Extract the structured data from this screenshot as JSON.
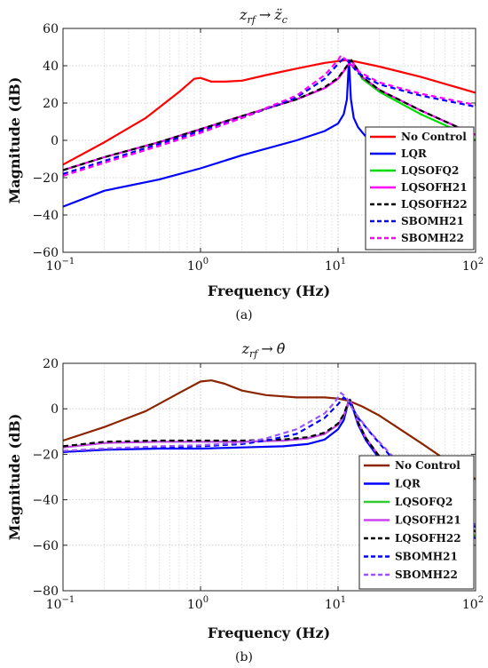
{
  "chart_data": [
    {
      "type": "line",
      "panel": "a",
      "caption": "(a)",
      "title": "z_{rf} → z̈_c",
      "title_parts": {
        "main": "z",
        "sub": "rf",
        "arrow": "→",
        "target": "z̈",
        "target_sub": "c"
      },
      "xlabel": "Frequency (Hz)",
      "ylabel": "Magnitude (dB)",
      "xscale": "log",
      "xlim": [
        0.1,
        100
      ],
      "ylim": [
        -60,
        60
      ],
      "x_ticks": [
        0.1,
        1,
        10,
        100
      ],
      "x_tick_labels": [
        "10",
        "10",
        "10",
        "10"
      ],
      "x_tick_exponents": [
        "−1",
        "0",
        "1",
        "2"
      ],
      "y_ticks": [
        -60,
        -40,
        -20,
        0,
        20,
        40,
        60
      ],
      "y_tick_labels": [
        "−60",
        "−40",
        "−20",
        "0",
        "20",
        "40",
        "60"
      ],
      "grid": true,
      "legend_position": "lower-right",
      "series": [
        {
          "name": "No Control",
          "color": "#ff0000",
          "dash": "solid",
          "x": [
            0.1,
            0.2,
            0.4,
            0.7,
            0.9,
            1.0,
            1.2,
            1.5,
            2.0,
            3.0,
            5.0,
            8.0,
            10.0,
            11.5,
            13.0,
            20.0,
            40.0,
            100.0
          ],
          "y": [
            -13,
            -1,
            12,
            26,
            33,
            33.5,
            31.5,
            31.5,
            32,
            35,
            38.5,
            41.5,
            42.5,
            43,
            42.5,
            39.5,
            34,
            25.5
          ]
        },
        {
          "name": "LQR",
          "color": "#0000ff",
          "dash": "solid",
          "x": [
            0.1,
            0.2,
            0.5,
            1.0,
            2.0,
            5.0,
            8.0,
            10.0,
            11.0,
            11.6,
            12.0,
            12.4,
            13.0,
            14.0,
            15.5,
            17.0,
            18.5,
            20.0
          ],
          "y": [
            -35.5,
            -27,
            -21,
            -15,
            -8,
            0,
            5,
            9,
            14,
            22,
            43,
            22,
            12,
            7,
            3,
            0,
            -2,
            -3
          ]
        },
        {
          "name": "LQSOFQ2",
          "color": "#00dd00",
          "dash": "solid",
          "x": [
            0.1,
            0.2,
            0.5,
            1.0,
            2.0,
            5.0,
            8.0,
            10.0,
            11.5,
            12.5,
            15.0,
            20.0,
            40.0,
            80.0,
            100.0
          ],
          "y": [
            -16,
            -9,
            -1,
            6,
            13,
            22,
            28,
            33,
            39,
            43,
            33,
            26,
            14,
            4,
            0
          ]
        },
        {
          "name": "LQSOFH21",
          "color": "#ff00ff",
          "dash": "solid",
          "x": [
            0.1,
            0.2,
            0.5,
            1.0,
            2.0,
            5.0,
            8.0,
            10.0,
            11.5,
            12.5,
            15.0,
            20.0,
            40.0,
            80.0,
            100.0
          ],
          "y": [
            -16,
            -9,
            -1,
            6,
            13,
            22,
            28,
            33,
            39,
            43,
            34,
            27,
            16,
            6,
            3
          ]
        },
        {
          "name": "LQSOFH22",
          "color": "#000000",
          "dash": "6,4",
          "x": [
            0.1,
            0.2,
            0.5,
            1.0,
            2.0,
            5.0,
            8.0,
            10.0,
            11.5,
            12.5,
            15.0,
            20.0,
            40.0,
            80.0,
            100.0
          ],
          "y": [
            -16,
            -9,
            -1,
            6,
            13,
            22,
            28.5,
            33.5,
            39.5,
            43,
            34,
            27,
            16,
            6,
            3
          ]
        },
        {
          "name": "SBOMH21",
          "color": "#0000ff",
          "dash": "6,4",
          "x": [
            0.1,
            0.2,
            0.5,
            1.0,
            2.0,
            5.0,
            8.0,
            10.0,
            11.0,
            12.0,
            14.0,
            20.0,
            40.0,
            100.0
          ],
          "y": [
            -18,
            -11,
            -2,
            5,
            12,
            23,
            33,
            41,
            44,
            42,
            36,
            30,
            24,
            18
          ]
        },
        {
          "name": "SBOMH22",
          "color": "#ff00ff",
          "dash": "6,4",
          "x": [
            0.1,
            0.2,
            0.5,
            1.0,
            2.0,
            5.0,
            8.0,
            10.0,
            10.5,
            11.5,
            14.0,
            20.0,
            40.0,
            100.0
          ],
          "y": [
            -19,
            -12,
            -3,
            4,
            12,
            24,
            35,
            43,
            45.5,
            43,
            37,
            31,
            25,
            19
          ]
        }
      ]
    },
    {
      "type": "line",
      "panel": "b",
      "caption": "(b)",
      "title": "z_{rf} → θ̇",
      "title_parts": {
        "main": "z",
        "sub": "rf",
        "arrow": "→",
        "target": "θ̇",
        "target_sub": ""
      },
      "xlabel": "Frequency (Hz)",
      "ylabel": "Magnitude (dB)",
      "xscale": "log",
      "xlim": [
        0.1,
        100
      ],
      "ylim": [
        -80,
        20
      ],
      "x_ticks": [
        0.1,
        1,
        10,
        100
      ],
      "x_tick_labels": [
        "10",
        "10",
        "10",
        "10"
      ],
      "x_tick_exponents": [
        "−1",
        "0",
        "1",
        "2"
      ],
      "y_ticks": [
        -80,
        -60,
        -40,
        -20,
        0,
        20
      ],
      "y_tick_labels": [
        "−80",
        "−60",
        "−40",
        "−20",
        "0",
        "20"
      ],
      "grid": true,
      "legend_position": "lower-right",
      "series": [
        {
          "name": "No Control",
          "color": "#8b2500",
          "dash": "solid",
          "x": [
            0.1,
            0.2,
            0.4,
            0.7,
            1.0,
            1.2,
            1.5,
            2.0,
            3.0,
            5.0,
            8.0,
            10.0,
            12.0,
            15.0,
            20.0,
            40.0,
            70.0,
            100.0
          ],
          "y": [
            -14,
            -8,
            -1,
            7,
            12,
            12.5,
            11,
            8,
            6,
            5,
            5,
            4.5,
            3.5,
            1,
            -3,
            -15,
            -25,
            -31
          ]
        },
        {
          "name": "LQR",
          "color": "#0000ff",
          "dash": "solid",
          "x": [
            0.1,
            0.2,
            0.5,
            1.0,
            2.0,
            4.0,
            6.0,
            8.0,
            10.0,
            11.0,
            11.8,
            12.2,
            13.0,
            14.0,
            16.0,
            20.0,
            40.0,
            70.0,
            100.0
          ],
          "y": [
            -19,
            -18,
            -17.5,
            -17.5,
            -17,
            -16.5,
            -15.5,
            -13.5,
            -9,
            -5,
            2,
            4,
            -1,
            -7,
            -14,
            -22,
            -40,
            -51,
            -57
          ]
        },
        {
          "name": "LQSOFQ2",
          "color": "#33cc33",
          "dash": "solid",
          "x": [
            0.1,
            0.2,
            0.5,
            1.0,
            2.0,
            4.0,
            6.0,
            8.0,
            10.0,
            11.0,
            11.8,
            12.2,
            13.0,
            14.0,
            16.0,
            20.0,
            40.0,
            70.0,
            100.0
          ],
          "y": [
            -17,
            -15,
            -14.5,
            -14.5,
            -14.5,
            -14,
            -13,
            -11,
            -7,
            -3,
            2.5,
            4,
            -0.5,
            -6,
            -13,
            -21,
            -39,
            -50,
            -56
          ]
        },
        {
          "name": "LQSOFH21",
          "color": "#cc44ee",
          "dash": "solid",
          "x": [
            0.1,
            0.2,
            0.5,
            1.0,
            2.0,
            4.0,
            6.0,
            8.0,
            10.0,
            11.0,
            11.8,
            12.2,
            13.0,
            14.0,
            16.0,
            20.0,
            40.0,
            70.0,
            100.0
          ],
          "y": [
            -17,
            -15,
            -14.5,
            -14.5,
            -14.5,
            -14,
            -13,
            -11,
            -7,
            -3,
            2.5,
            4,
            -0.5,
            -6,
            -13,
            -21,
            -38,
            -48,
            -54
          ]
        },
        {
          "name": "LQSOFH22",
          "color": "#000000",
          "dash": "6,4",
          "x": [
            0.1,
            0.2,
            0.5,
            1.0,
            2.0,
            4.0,
            6.0,
            8.0,
            10.0,
            11.0,
            11.8,
            12.2,
            13.0,
            14.0,
            16.0,
            20.0,
            40.0,
            70.0,
            100.0
          ],
          "y": [
            -16.5,
            -14.5,
            -14,
            -14,
            -14,
            -13.5,
            -12.5,
            -10.5,
            -6.5,
            -2.5,
            2.5,
            4,
            -0.5,
            -6,
            -13,
            -21,
            -38,
            -48,
            -54
          ]
        },
        {
          "name": "SBOMH21",
          "color": "#0000ff",
          "dash": "6,4",
          "x": [
            0.1,
            0.2,
            0.5,
            1.0,
            2.0,
            3.0,
            5.0,
            8.0,
            10.0,
            11.0,
            12.0,
            14.0,
            18.0,
            25.0,
            40.0,
            70.0,
            100.0
          ],
          "y": [
            -19,
            -18,
            -17,
            -16.5,
            -15.5,
            -14,
            -11,
            -4,
            2,
            5,
            3,
            -4,
            -12,
            -22,
            -35,
            -46,
            -52
          ]
        },
        {
          "name": "SBOMH22",
          "color": "#9955ff",
          "dash": "6,4",
          "x": [
            0.1,
            0.2,
            0.5,
            1.0,
            2.0,
            3.0,
            5.0,
            8.0,
            9.5,
            10.5,
            11.5,
            13.0,
            17.0,
            25.0,
            40.0,
            70.0,
            100.0
          ],
          "y": [
            -18.5,
            -17.5,
            -16.5,
            -16,
            -15,
            -13,
            -9,
            -2,
            3,
            7,
            5,
            -1,
            -10,
            -21,
            -34,
            -45,
            -51
          ]
        }
      ]
    }
  ]
}
